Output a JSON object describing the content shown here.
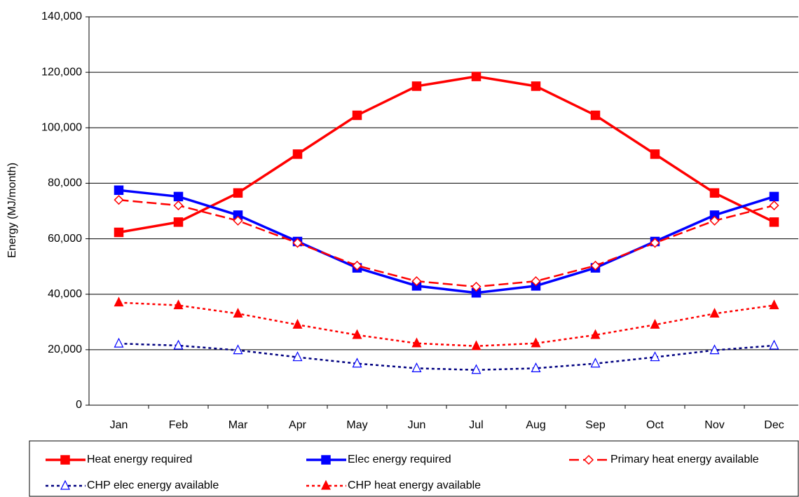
{
  "chart_data": {
    "type": "line",
    "y_label": "Energy (MJ/month)",
    "categories": [
      "Jan",
      "Feb",
      "Mar",
      "Apr",
      "May",
      "Jun",
      "Jul",
      "Aug",
      "Sep",
      "Oct",
      "Nov",
      "Dec"
    ],
    "ylim": [
      0,
      140000
    ],
    "yticks": [
      0,
      {
        "value": 20000,
        "label": "20,000"
      },
      {
        "value": 40000,
        "label": "40,000"
      },
      {
        "value": 60000,
        "label": "60,000"
      },
      {
        "value": 80000,
        "label": "80,000"
      },
      {
        "value": 100000,
        "label": "100,000"
      },
      {
        "value": 120000,
        "label": "120,000"
      },
      {
        "value": 140000,
        "label": "140,000"
      }
    ],
    "grid": true,
    "legend": "bottom",
    "series": [
      {
        "name": "Heat energy required",
        "color": "#ff0000",
        "line_style": "solid",
        "marker": "square",
        "marker_filled": true,
        "values": [
          62300,
          66000,
          76500,
          90500,
          104500,
          115000,
          118500,
          115000,
          104500,
          90500,
          76500,
          66000
        ]
      },
      {
        "name": "Elec energy required",
        "color": "#0000ff",
        "line_style": "solid",
        "marker": "square",
        "marker_filled": true,
        "values": [
          77500,
          75200,
          68500,
          59000,
          49500,
          43000,
          40500,
          43000,
          49500,
          59000,
          68500,
          75200
        ]
      },
      {
        "name": "Primary heat energy available",
        "color": "#ff0000",
        "line_style": "dashed",
        "marker": "diamond",
        "marker_filled": false,
        "values": [
          74000,
          72000,
          66500,
          58500,
          50300,
          44700,
          42700,
          44700,
          50300,
          58500,
          66500,
          72000
        ]
      },
      {
        "name": "CHP elec energy available",
        "color": "#000080",
        "marker_color": "#0000ff",
        "line_style": "dotted",
        "marker": "triangle",
        "marker_filled": false,
        "values": [
          22200,
          21500,
          19800,
          17300,
          15000,
          13300,
          12700,
          13300,
          15000,
          17300,
          19800,
          21500
        ]
      },
      {
        "name": "CHP heat energy available",
        "color": "#ff0000",
        "line_style": "dotted",
        "marker": "triangle",
        "marker_filled": true,
        "values": [
          37000,
          36000,
          33000,
          29000,
          25300,
          22300,
          21300,
          22300,
          25300,
          29000,
          33000,
          36000
        ]
      }
    ]
  }
}
